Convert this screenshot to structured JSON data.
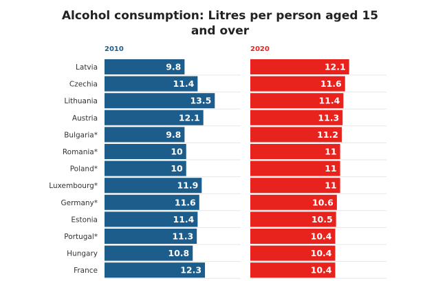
{
  "chart_data": {
    "type": "bar",
    "orientation": "horizontal",
    "title": "Alcohol consumption: Litres per person aged 15 and over",
    "categories": [
      "Latvia",
      "Czechia",
      "Lithuania",
      "Austria",
      "Bulgaria*",
      "Romania*",
      "Poland*",
      "Luxembourg*",
      "Germany*",
      "Estonia",
      "Portugal*",
      "Hungary",
      "France"
    ],
    "series": [
      {
        "name": "2010",
        "color": "#1c5d8c",
        "values": [
          9.8,
          11.4,
          13.5,
          12.1,
          9.8,
          10,
          10,
          11.9,
          11.6,
          11.4,
          11.3,
          10.8,
          12.3
        ],
        "labels": [
          "9.8",
          "11.4",
          "13.5",
          "12.1",
          "9.8",
          "10",
          "10",
          "11.9",
          "11.6",
          "11.4",
          "11.3",
          "10.8",
          "12.3"
        ]
      },
      {
        "name": "2020",
        "color": "#e8221d",
        "values": [
          12.1,
          11.6,
          11.4,
          11.3,
          11.2,
          11,
          11,
          11,
          10.6,
          10.5,
          10.4,
          10.4,
          10.4
        ],
        "labels": [
          "12.1",
          "11.6",
          "11.4",
          "11.3",
          "11.2",
          "11",
          "11",
          "11",
          "10.6",
          "10.5",
          "10.4",
          "10.4",
          "10.4"
        ]
      }
    ],
    "xlim": [
      0,
      16
    ],
    "xlabel": "",
    "ylabel": "",
    "grid": true
  }
}
